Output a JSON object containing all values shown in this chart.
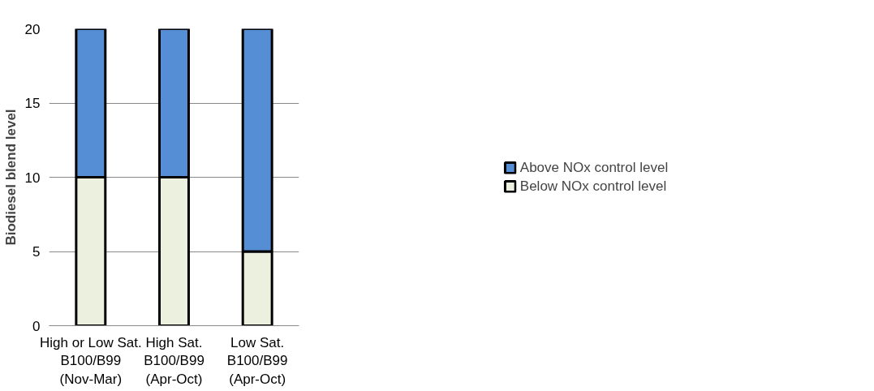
{
  "chart_data": {
    "type": "bar",
    "stacked": true,
    "ylabel": "Biodiesel blend level",
    "categories": [
      "High or Low Sat.\nB100/B99\n(Nov-Mar)",
      "High Sat.\nB100/B99\n(Apr-Oct)",
      "Low Sat.\nB100/B99\n(Apr-Oct)"
    ],
    "series": [
      {
        "name": "Below NOx control level",
        "color": "#ebf1de",
        "values": [
          10,
          10,
          5
        ]
      },
      {
        "name": "Above NOx control level",
        "color": "#558ed5",
        "values": [
          10,
          10,
          15
        ]
      }
    ],
    "ylim": [
      0,
      20
    ],
    "yticks": [
      0,
      5,
      10,
      15,
      20
    ],
    "grid": "y",
    "legend": "right"
  }
}
